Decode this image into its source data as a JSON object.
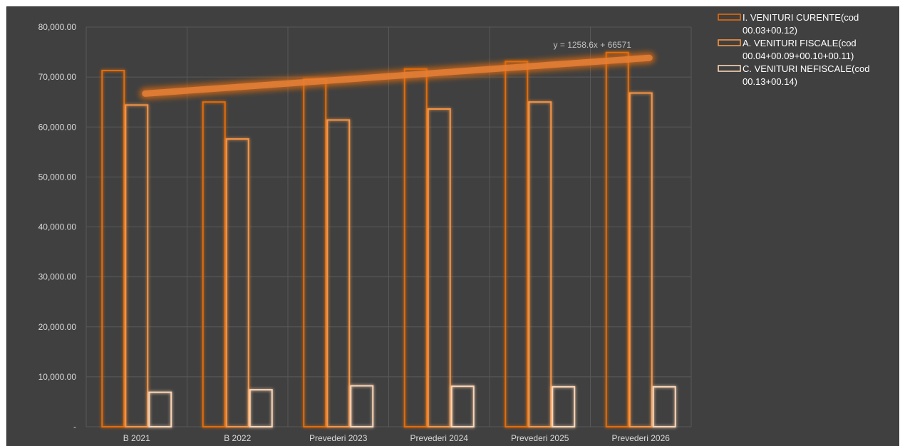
{
  "chart_data": {
    "type": "bar",
    "categories": [
      "B 2021",
      "B 2022",
      "Prevederi 2023",
      "Prevederi 2024",
      "Prevederi 2025",
      "Prevederi 2026"
    ],
    "series": [
      {
        "name": "I.  VENITURI CURENTE(cod 00.03+00.12)",
        "values": [
          71300,
          65000,
          69600,
          71600,
          73100,
          74900
        ],
        "color": "#e46c0a"
      },
      {
        "name": "A.  VENITURI FISCALE(cod 00.04+00.09+00.10+00.11)",
        "values": [
          64400,
          57600,
          61400,
          63600,
          65000,
          66800
        ],
        "color": "#f79646"
      },
      {
        "name": "C.   VENITURI NEFISCALE(cod 00.13+00.14)",
        "values": [
          6900,
          7400,
          8200,
          8100,
          8000,
          8000
        ],
        "color": "#fbd5b5"
      }
    ],
    "legend_lines": [
      [
        "I.  VENITURI CURENTE(cod",
        "00.03+00.12)"
      ],
      [
        "A.  VENITURI FISCALE(cod",
        "00.04+00.09+00.10+00.11)"
      ],
      [
        "C.   VENITURI NEFISCALE(cod",
        "00.13+00.14)"
      ]
    ],
    "ylim": [
      0,
      80000
    ],
    "yticks": [
      0,
      10000,
      20000,
      30000,
      40000,
      50000,
      60000,
      70000,
      80000
    ],
    "ytick_labels": [
      "-",
      "10,000.00",
      "20,000.00",
      "30,000.00",
      "40,000.00",
      "50,000.00",
      "60,000.00",
      "70,000.00",
      "80,000.00"
    ],
    "trendline": {
      "equation": "y = 1258.6x + 66571",
      "slope": 1258.6,
      "intercept": 66571,
      "color": "#e46c0a"
    },
    "grid": true,
    "legend_position": "top-right",
    "title": "",
    "xlabel": "",
    "ylabel": ""
  }
}
